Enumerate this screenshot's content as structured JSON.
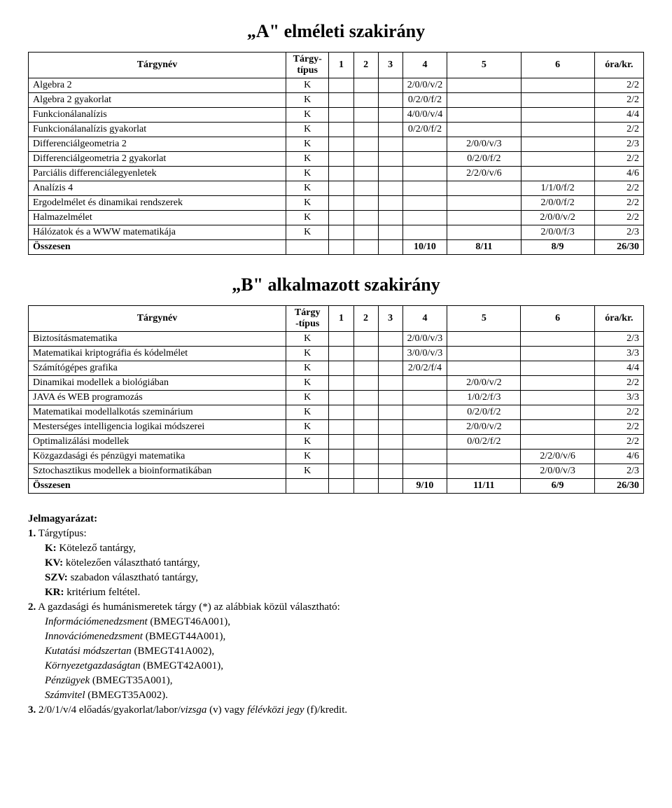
{
  "section_a": {
    "title": "„A\" elméleti szakirány",
    "headers": [
      "Tárgynév",
      "Tárgy-\ntípus",
      "1",
      "2",
      "3",
      "4",
      "5",
      "6",
      "óra/kr."
    ],
    "rows": [
      {
        "name": "Algebra 2",
        "type": "K",
        "c1": "",
        "c2": "",
        "c3": "",
        "c4": "2/0/0/v/2",
        "c5": "",
        "c6": "",
        "ora": "2/2"
      },
      {
        "name": "Algebra 2 gyakorlat",
        "type": "K",
        "c1": "",
        "c2": "",
        "c3": "",
        "c4": "0/2/0/f/2",
        "c5": "",
        "c6": "",
        "ora": "2/2"
      },
      {
        "name": "Funkcionálanalízis",
        "type": "K",
        "c1": "",
        "c2": "",
        "c3": "",
        "c4": "4/0/0/v/4",
        "c5": "",
        "c6": "",
        "ora": "4/4"
      },
      {
        "name": "Funkcionálanalízis gyakorlat",
        "type": "K",
        "c1": "",
        "c2": "",
        "c3": "",
        "c4": "0/2/0/f/2",
        "c5": "",
        "c6": "",
        "ora": "2/2"
      },
      {
        "name": "Differenciálgeometria 2",
        "type": "K",
        "c1": "",
        "c2": "",
        "c3": "",
        "c4": "",
        "c5": "2/0/0/v/3",
        "c6": "",
        "ora": "2/3"
      },
      {
        "name": "Differenciálgeometria 2 gyakorlat",
        "type": "K",
        "c1": "",
        "c2": "",
        "c3": "",
        "c4": "",
        "c5": "0/2/0/f/2",
        "c6": "",
        "ora": "2/2"
      },
      {
        "name": "Parciális differenciálegyenletek",
        "type": "K",
        "c1": "",
        "c2": "",
        "c3": "",
        "c4": "",
        "c5": "2/2/0/v/6",
        "c6": "",
        "ora": "4/6"
      },
      {
        "name": "Analízis 4",
        "type": "K",
        "c1": "",
        "c2": "",
        "c3": "",
        "c4": "",
        "c5": "",
        "c6": "1/1/0/f/2",
        "ora": "2/2"
      },
      {
        "name": "Ergodelmélet és dinamikai rendszerek",
        "type": "K",
        "c1": "",
        "c2": "",
        "c3": "",
        "c4": "",
        "c5": "",
        "c6": "2/0/0/f/2",
        "ora": "2/2"
      },
      {
        "name": "Halmazelmélet",
        "type": "K",
        "c1": "",
        "c2": "",
        "c3": "",
        "c4": "",
        "c5": "",
        "c6": "2/0/0/v/2",
        "ora": "2/2"
      },
      {
        "name": "Hálózatok és a WWW matematikája",
        "type": "K",
        "c1": "",
        "c2": "",
        "c3": "",
        "c4": "",
        "c5": "",
        "c6": "2/0/0/f/3",
        "ora": "2/3"
      }
    ],
    "sum": {
      "name": "Összesen",
      "type": "",
      "c1": "",
      "c2": "",
      "c3": "",
      "c4": "10/10",
      "c5": "8/11",
      "c6": "8/9",
      "ora": "26/30"
    }
  },
  "section_b": {
    "title": "„B\" alkalmazott szakirány",
    "headers": [
      "Tárgynév",
      "Tárgy\n-típus",
      "1",
      "2",
      "3",
      "4",
      "5",
      "6",
      "óra/kr."
    ],
    "rows": [
      {
        "name": "Biztosításmatematika",
        "type": "K",
        "c1": "",
        "c2": "",
        "c3": "",
        "c4": "2/0/0/v/3",
        "c5": "",
        "c6": "",
        "ora": "2/3"
      },
      {
        "name": "Matematikai kriptográfia és kódelmélet",
        "type": "K",
        "c1": "",
        "c2": "",
        "c3": "",
        "c4": "3/0/0/v/3",
        "c5": "",
        "c6": "",
        "ora": "3/3"
      },
      {
        "name": "Számítógépes grafika",
        "type": "K",
        "c1": "",
        "c2": "",
        "c3": "",
        "c4": "2/0/2/f/4",
        "c5": "",
        "c6": "",
        "ora": "4/4"
      },
      {
        "name": "Dinamikai modellek a biológiában",
        "type": "K",
        "c1": "",
        "c2": "",
        "c3": "",
        "c4": "",
        "c5": "2/0/0/v/2",
        "c6": "",
        "ora": "2/2"
      },
      {
        "name": "JAVA és WEB programozás",
        "type": "K",
        "c1": "",
        "c2": "",
        "c3": "",
        "c4": "",
        "c5": "1/0/2/f/3",
        "c6": "",
        "ora": "3/3"
      },
      {
        "name": "Matematikai modellalkotás szeminárium",
        "type": "K",
        "c1": "",
        "c2": "",
        "c3": "",
        "c4": "",
        "c5": "0/2/0/f/2",
        "c6": "",
        "ora": "2/2"
      },
      {
        "name": "Mesterséges intelligencia logikai módszerei",
        "type": "K",
        "c1": "",
        "c2": "",
        "c3": "",
        "c4": "",
        "c5": "2/0/0/v/2",
        "c6": "",
        "ora": "2/2"
      },
      {
        "name": "Optimalizálási modellek",
        "type": "K",
        "c1": "",
        "c2": "",
        "c3": "",
        "c4": "",
        "c5": "0/0/2/f/2",
        "c6": "",
        "ora": "2/2"
      },
      {
        "name": "Közgazdasági és pénzügyi matematika",
        "type": "K",
        "c1": "",
        "c2": "",
        "c3": "",
        "c4": "",
        "c5": "",
        "c6": "2/2/0/v/6",
        "ora": "4/6"
      },
      {
        "name": "Sztochasztikus modellek a bioinformatikában",
        "type": "K",
        "c1": "",
        "c2": "",
        "c3": "",
        "c4": "",
        "c5": "",
        "c6": "2/0/0/v/3",
        "ora": "2/3"
      }
    ],
    "sum": {
      "name": "Összesen",
      "type": "",
      "c1": "",
      "c2": "",
      "c3": "",
      "c4": "9/10",
      "c5": "11/11",
      "c6": "6/9",
      "ora": "26/30"
    }
  },
  "legend": {
    "heading": "Jelmagyarázat:",
    "item1_lead": "1. Tárgytípus:",
    "item1_lines": [
      "K: Kötelező tantárgy,",
      "KV: kötelezően választható tantárgy,",
      "SZV: szabadon választható tantárgy,",
      "KR: kritérium feltétel."
    ],
    "item1_bold_prefixes": [
      "K:",
      "KV:",
      "SZV:",
      "KR:"
    ],
    "item2_lead": "2. A gazdasági és humánismeretek tárgy (*) az alábbiak közül választható:",
    "item2_lines": [
      "Információmenedzsment (BMEGT46A001),",
      "Innovációmenedzsment (BMEGT44A001),",
      "Kutatási módszertan (BMEGT41A002),",
      "Környezetgazdaságtan (BMEGT42A001),",
      "Pénzügyek (BMEGT35A001),",
      "Számvitel (BMEGT35A002)."
    ],
    "item3": "3. 2/0/1/v/4 előadás/gyakorlat/labor/vizsga (v) vagy félévközi jegy (f)/kredit."
  }
}
